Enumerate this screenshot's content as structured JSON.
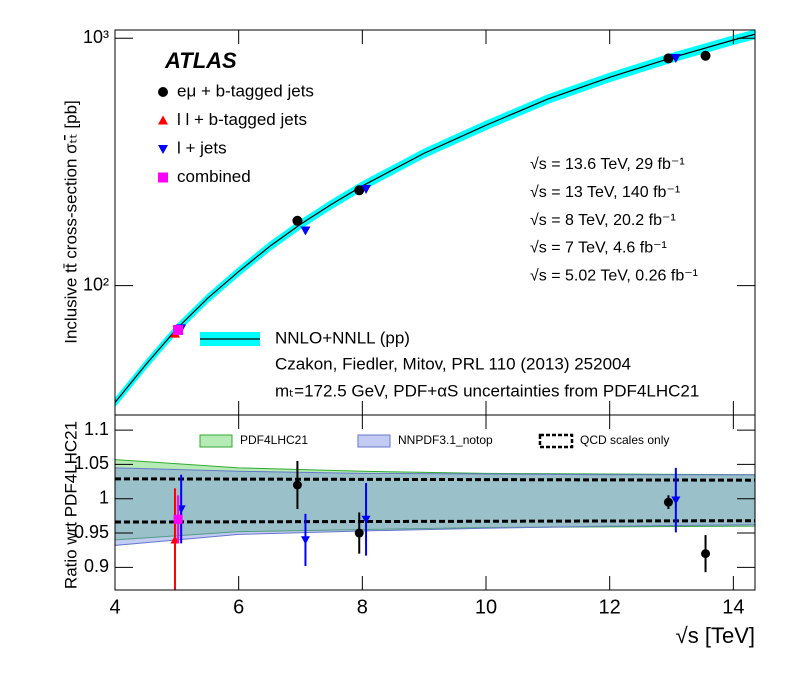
{
  "chart_data": [
    {
      "type": "scatter",
      "title": "ATLAS",
      "ylabel": "Inclusive tt̄ cross-section σₜₜ̄ [pb]",
      "xlim": [
        4,
        14.35
      ],
      "xticks": [
        4,
        6,
        8,
        10,
        12,
        14
      ],
      "ylim": [
        30,
        1080
      ],
      "log_y": true,
      "yticks": [
        {
          "value": 100,
          "label": "10²"
        },
        {
          "value": 1000,
          "label": "10³"
        }
      ],
      "series": [
        {
          "name": "eμ + b-tagged jets",
          "color": "#000000",
          "marker": "circle",
          "x": [
            6.95,
            7.95,
            12.95,
            13.55
          ],
          "values": [
            182.9,
            242.9,
            829,
            850
          ]
        },
        {
          "name": "l l + b-tagged jets",
          "color": "#ff0000",
          "marker": "triangle-up",
          "x": [
            4.97
          ],
          "values": [
            64
          ]
        },
        {
          "name": "l + jets",
          "color": "#0000ff",
          "marker": "triangle-down",
          "x": [
            5.07,
            7.08,
            8.06,
            13.07
          ],
          "values": [
            67.2,
            167,
            246,
            832
          ]
        },
        {
          "name": "combined",
          "color": "#ff00ff",
          "marker": "square",
          "x": [
            5.02
          ],
          "values": [
            66.2
          ]
        }
      ],
      "theory": {
        "name": "NNLO+NNLL (pp)",
        "color": "#00ffff",
        "line_color": "#000000",
        "uncertainty_pct": 4.5,
        "x": [
          4,
          4.5,
          5,
          5.5,
          6,
          6.5,
          7,
          7.5,
          8,
          9,
          10,
          11,
          12,
          13,
          14,
          14.35
        ],
        "values": [
          33.7,
          48,
          67,
          89,
          114,
          144,
          177,
          213,
          253,
          343,
          445,
          568,
          695,
          834,
          984,
          1038
        ]
      },
      "theory_notes": [
        "Czakon, Fiedler, Mitov, PRL 110 (2013) 252004",
        "mₜ=172.5 GeV, PDF+αS uncertainties from PDF4LHC21"
      ],
      "annotations": [
        "√s = 13.6 TeV, 29 fb⁻¹",
        "√s = 13 TeV, 140 fb⁻¹",
        "√s = 8 TeV, 20.2 fb⁻¹",
        "√s = 7 TeV, 4.6 fb⁻¹",
        "√s = 5.02 TeV, 0.26 fb⁻¹"
      ]
    },
    {
      "type": "scatter",
      "ylabel": "Ratio wrt PDF4LHC21",
      "xlabel": "√s [TeV]",
      "xlim": [
        4,
        14.35
      ],
      "xticks": [
        4,
        6,
        8,
        10,
        12,
        14
      ],
      "ylim": [
        0.867,
        1.122
      ],
      "yticks": [
        0.9,
        0.95,
        1,
        1.05,
        1.1
      ],
      "series": [
        {
          "name": "eμ + b-tagged jets",
          "color": "#000000",
          "marker": "circle",
          "x": [
            6.95,
            7.95,
            12.95,
            13.55
          ],
          "values": [
            1.02,
            0.95,
            0.995,
            0.92
          ],
          "errors": [
            0.035,
            0.03,
            0.01,
            0.027
          ]
        },
        {
          "name": "l l + b-tagged jets",
          "color": "#ff0000",
          "marker": "triangle-up",
          "x": [
            4.97
          ],
          "values": [
            0.94
          ],
          "errors": [
            0.075
          ]
        },
        {
          "name": "l + jets",
          "color": "#0000ff",
          "marker": "triangle-down",
          "x": [
            5.07,
            7.08,
            8.06,
            13.07
          ],
          "values": [
            0.985,
            0.94,
            0.97,
            0.998
          ],
          "errors": [
            0.05,
            0.038,
            0.053,
            0.047
          ]
        },
        {
          "name": "combined",
          "color": "#ff00ff",
          "marker": "square",
          "x": [
            5.02
          ],
          "values": [
            0.97
          ],
          "errors": [
            0.035
          ]
        }
      ],
      "bands": [
        {
          "name": "PDF4LHC21",
          "color": "rgba(110,215,110,0.5)",
          "edge": "#33aa33",
          "x": [
            4,
            6,
            8,
            10,
            12,
            14.35
          ],
          "lower": [
            0.94,
            0.952,
            0.955,
            0.958,
            0.959,
            0.96
          ],
          "upper": [
            1.057,
            1.045,
            1.04,
            1.037,
            1.036,
            1.035
          ]
        },
        {
          "name": "NNPDF3.1_notop",
          "color": "rgba(120,140,225,0.45)",
          "edge": "#6677cc",
          "x": [
            4,
            6,
            8,
            10,
            12,
            14.35
          ],
          "lower": [
            0.932,
            0.948,
            0.953,
            0.957,
            0.96,
            0.962
          ],
          "upper": [
            1.045,
            1.04,
            1.037,
            1.036,
            1.035,
            1.035
          ]
        }
      ],
      "scale_lines": {
        "name": "QCD scales only",
        "x": [
          4,
          14.35
        ],
        "upper": [
          1.029,
          1.027
        ],
        "lower": [
          0.966,
          0.968
        ]
      }
    }
  ]
}
